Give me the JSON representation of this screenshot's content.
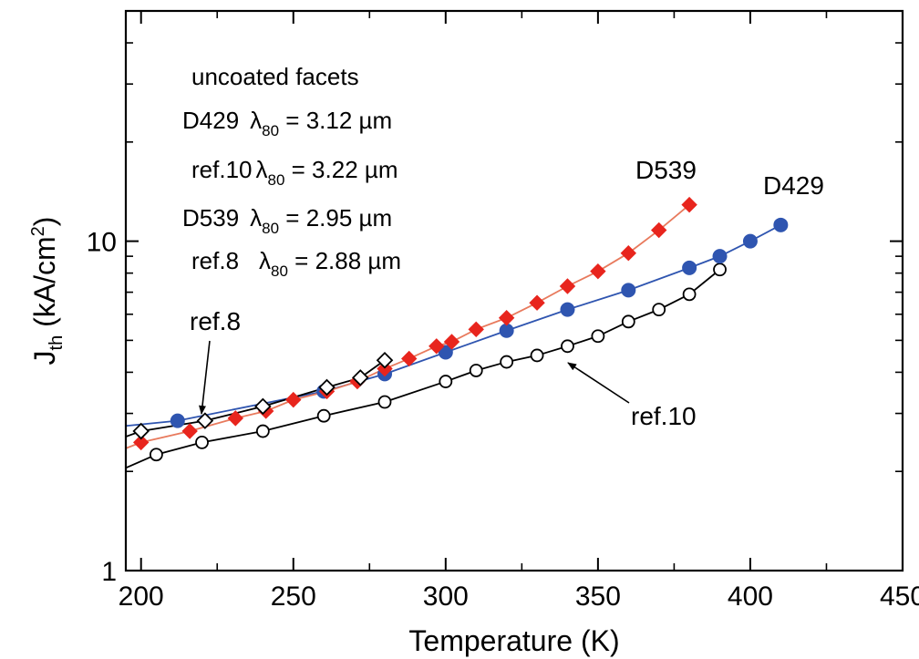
{
  "chart_data": {
    "type": "scatter",
    "xlabel": "Temperature (K)",
    "ylabel_main": "J",
    "ylabel_sub": "th",
    "ylabel_unit_open": " (kA/cm",
    "ylabel_unit_sup": "2",
    "ylabel_unit_close": ")",
    "xlim": [
      195,
      450
    ],
    "ylim": [
      1,
      50
    ],
    "yscale": "log",
    "xticks": [
      200,
      250,
      300,
      350,
      400,
      450
    ],
    "xtick_labels": [
      "200",
      "250",
      "300",
      "350",
      "400",
      "450"
    ],
    "yticks_major": [
      1,
      10
    ],
    "ytick_labels": [
      "1",
      "10"
    ],
    "series": [
      {
        "name": "ref.10",
        "marker": "open-circle",
        "color": "#000000",
        "line_color": "#000000",
        "x": [
          195,
          205,
          220,
          240,
          260,
          280,
          300,
          310,
          320,
          330,
          340,
          350,
          360,
          370,
          380,
          390
        ],
        "y": [
          2.05,
          2.25,
          2.45,
          2.65,
          2.95,
          3.25,
          3.75,
          4.05,
          4.3,
          4.5,
          4.8,
          5.15,
          5.7,
          6.2,
          6.9,
          8.2
        ]
      },
      {
        "name": "D429",
        "marker": "filled-circle",
        "color": "#2f55b0",
        "line_color": "#2f55b0",
        "x": [
          195,
          212,
          260,
          280,
          300,
          320,
          340,
          360,
          380,
          390,
          400,
          410
        ],
        "y": [
          2.75,
          2.85,
          3.5,
          3.95,
          4.6,
          5.35,
          6.2,
          7.1,
          8.3,
          9.0,
          10.0,
          11.2
        ]
      },
      {
        "name": "D539",
        "marker": "filled-diamond",
        "color": "#e8251d",
        "line_color": "#e87a5d",
        "x": [
          195,
          200,
          216,
          231,
          241,
          250,
          261,
          271,
          280,
          288,
          297,
          302,
          310,
          320,
          330,
          340,
          350,
          360,
          370,
          380
        ],
        "y": [
          2.35,
          2.45,
          2.65,
          2.9,
          3.05,
          3.3,
          3.5,
          3.75,
          4.1,
          4.4,
          4.8,
          4.95,
          5.4,
          5.85,
          6.5,
          7.3,
          8.1,
          9.2,
          10.8,
          12.9
        ]
      },
      {
        "name": "ref.8",
        "marker": "open-diamond",
        "color": "#000000",
        "line_color": "#000000",
        "x": [
          195,
          200,
          221,
          240,
          261,
          272,
          280
        ],
        "y": [
          2.55,
          2.65,
          2.85,
          3.15,
          3.6,
          3.85,
          4.35
        ]
      }
    ],
    "annotations": {
      "header": "uncoated facets",
      "lines": [
        {
          "sample": "D429",
          "value": " = 3.12 µm"
        },
        {
          "sample": "ref.10",
          "value": " = 3.22 µm"
        },
        {
          "sample": "D539",
          "value": " = 2.95 µm"
        },
        {
          "sample": "ref.8",
          "value": " = 2.88 µm"
        }
      ],
      "lambda_symbol": "λ",
      "lambda_sub": "80"
    },
    "series_labels": {
      "d539": "D539",
      "d429": "D429",
      "ref8": "ref.8",
      "ref10": "ref.10"
    }
  }
}
